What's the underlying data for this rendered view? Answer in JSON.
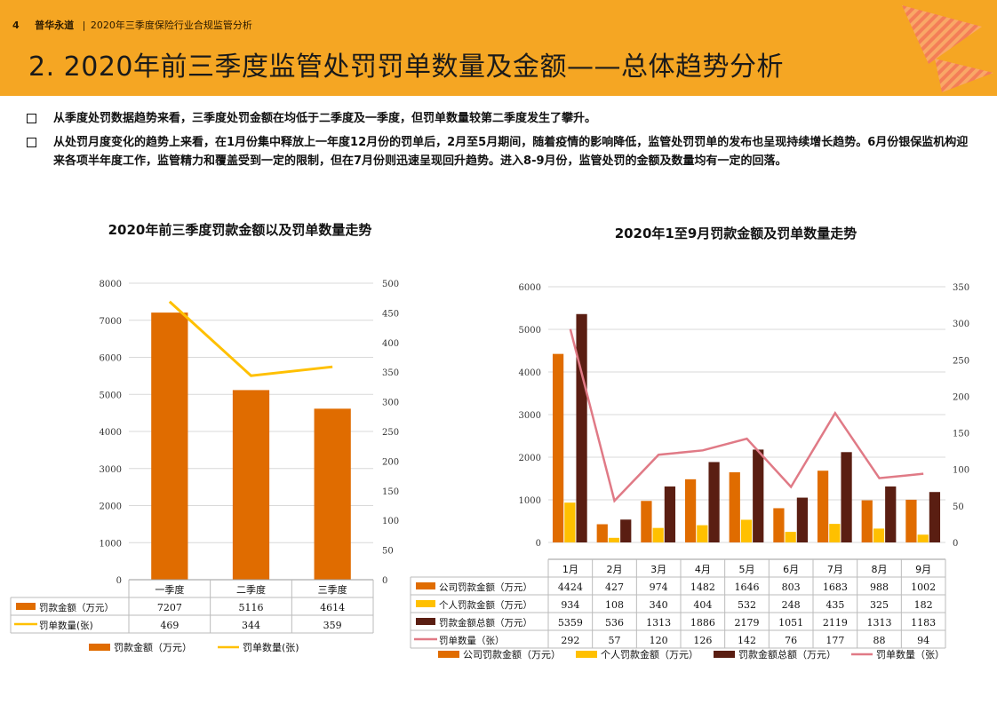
{
  "header": {
    "page_number": "4",
    "brand": "普华永道",
    "separator": "|",
    "report_title": "2020年三季度保险行业合规监管分析",
    "title": "2. 2020年前三季度监管处罚罚单数量及金额——总体趋势分析",
    "background_color": "#f5a623"
  },
  "bullets": [
    "从季度处罚数据趋势来看，三季度处罚金额在均低于二季度及一季度，但罚单数量较第二季度发生了攀升。",
    "从处罚月度变化的趋势上来看，在1月份集中释放上一年度12月份的罚单后，2月至5月期间，随着疫情的影响降低，监管处罚罚单的发布也呈现持续增长趋势。6月份银保监机构迎来各项半年度工作，监管精力和覆盖受到一定的限制，但在7月份则迅速呈现回升趋势。进入8-9月份，监管处罚的金额及数量均有一定的回落。"
  ],
  "chart_data": [
    {
      "type": "bar",
      "title": "2020年前三季度罚款金额以及罚单数量走势",
      "categories": [
        "一季度",
        "二季度",
        "三季度"
      ],
      "series": [
        {
          "name": "罚款金额（万元）",
          "kind": "bar",
          "axis": "left",
          "color": "#e06c00",
          "values": [
            7207,
            5116,
            4614
          ]
        },
        {
          "name": "罚单数量(张)",
          "kind": "line",
          "axis": "right",
          "color": "#ffc000",
          "values": [
            469,
            344,
            359
          ]
        }
      ],
      "left_axis": {
        "min": 0,
        "max": 8000,
        "ticks": [
          0,
          1000,
          2000,
          3000,
          4000,
          5000,
          6000,
          7000,
          8000
        ]
      },
      "right_axis": {
        "min": 0,
        "max": 500,
        "ticks": [
          0,
          50,
          100,
          150,
          200,
          250,
          300,
          350,
          400,
          450,
          500
        ]
      },
      "legend_labels": [
        "罚款金额（万元）",
        "罚单数量(张)"
      ],
      "data_table": true,
      "legend_position": "bottom"
    },
    {
      "type": "bar",
      "title": "2020年1至9月罚款金额及罚单数量走势",
      "categories": [
        "1月",
        "2月",
        "3月",
        "4月",
        "5月",
        "6月",
        "7月",
        "8月",
        "9月"
      ],
      "series": [
        {
          "name": "公司罚款金额（万元）",
          "kind": "bar",
          "axis": "left",
          "color": "#e06c00",
          "values": [
            4424,
            427,
            974,
            1482,
            1646,
            803,
            1683,
            988,
            1002
          ]
        },
        {
          "name": "个人罚款金额（万元）",
          "kind": "bar",
          "axis": "left",
          "color": "#ffc000",
          "values": [
            934,
            108,
            340,
            404,
            532,
            248,
            435,
            325,
            182
          ]
        },
        {
          "name": "罚款金额总额（万元）",
          "kind": "bar",
          "axis": "left",
          "color": "#5a1e12",
          "values": [
            5359,
            536,
            1313,
            1886,
            2179,
            1051,
            2119,
            1313,
            1183
          ]
        },
        {
          "name": "罚单数量（张）",
          "kind": "line",
          "axis": "right",
          "color": "#e07a86",
          "values": [
            292,
            57,
            120,
            126,
            142,
            76,
            177,
            88,
            94
          ]
        }
      ],
      "left_axis": {
        "min": 0,
        "max": 6000,
        "ticks": [
          0,
          1000,
          2000,
          3000,
          4000,
          5000,
          6000
        ]
      },
      "right_axis": {
        "min": 0,
        "max": 350,
        "ticks": [
          0,
          50,
          100,
          150,
          200,
          250,
          300,
          350
        ]
      },
      "legend_labels": [
        "公司罚款金额（万元）",
        "个人罚款金额（万元）",
        "罚款金额总额（万元）",
        "罚单数量（张）"
      ],
      "data_table": true,
      "legend_position": "bottom"
    }
  ]
}
